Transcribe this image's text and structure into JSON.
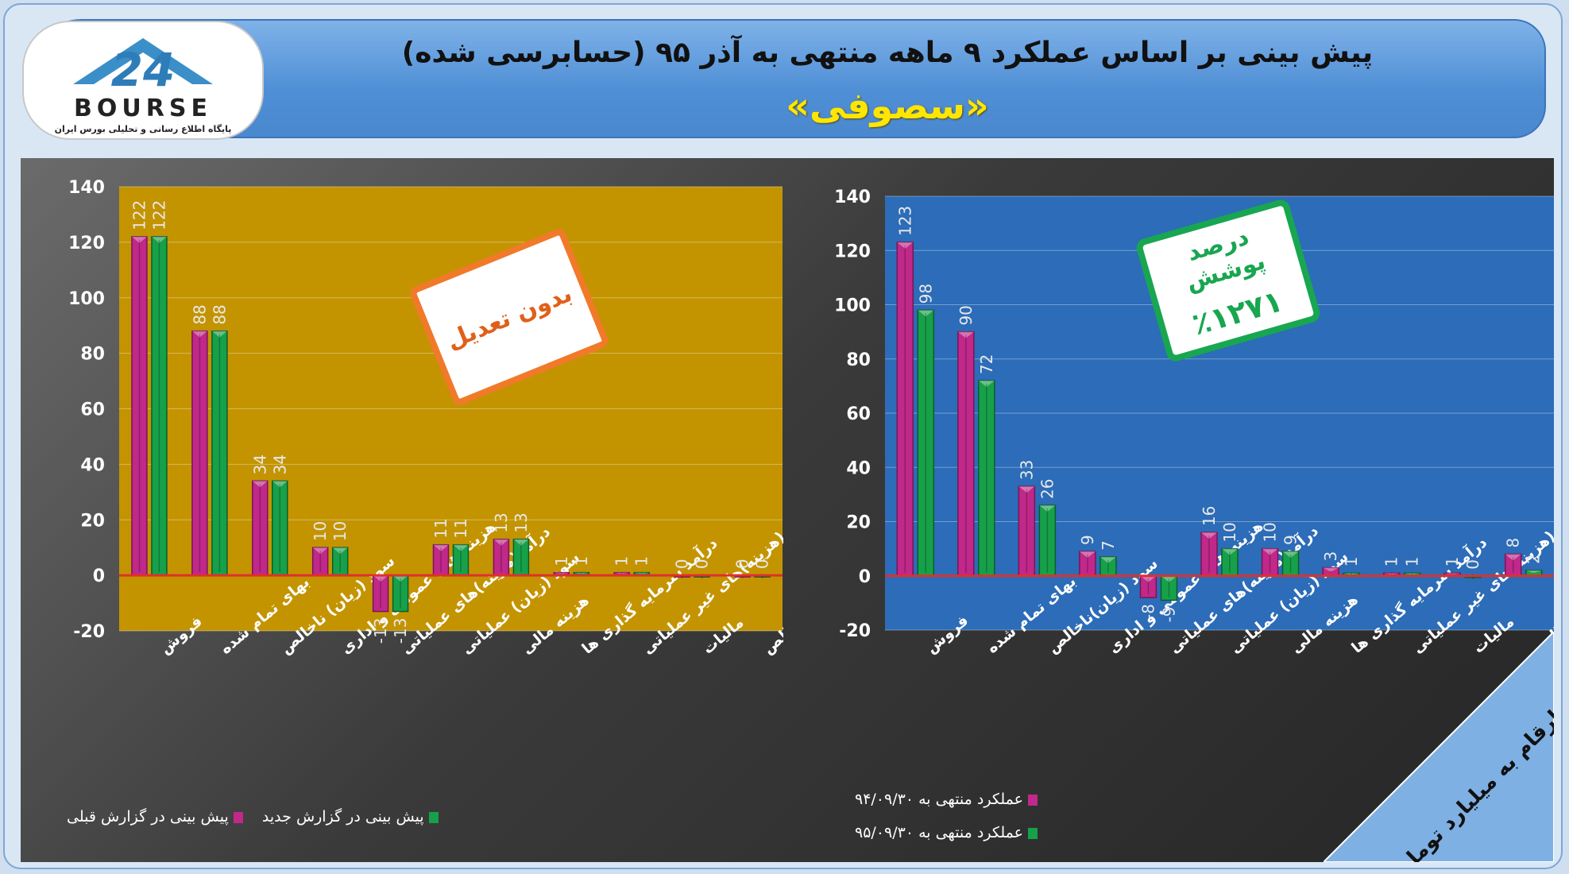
{
  "header": {
    "title": "پیش بینی بر اساس عملکرد ۹ ماهه منتهی به آذر ۹۵ (حسابرسی شده)",
    "company": "«سصوفی»"
  },
  "logo": {
    "brand": "BOURSE",
    "number": "24",
    "tagline": "پایگاه اطلاع رسانی و تحلیلی بورس ایران"
  },
  "colors": {
    "pink": "#c0288a",
    "green": "#17a04a",
    "left_plot": "#c39400",
    "right_plot": "#2c6cb8",
    "zero_line": "#e0302a"
  },
  "stamps": {
    "left": "بدون تعدیل",
    "right_line1": "درصد پوشش",
    "right_line2": "٪۱۲۷۱"
  },
  "units_note": "ارقام به میلیارد تومان",
  "chart_data": [
    {
      "type": "bar",
      "ylim": [
        -20,
        140
      ],
      "yticks": [
        -20,
        0,
        20,
        40,
        60,
        80,
        100,
        120,
        140
      ],
      "grid": true,
      "legend_position": "bottom",
      "categories": [
        "فروش",
        "بهای تمام شده",
        "سود (زیان) ناخالص",
        "هزینه های عمومی و اداری",
        "درآمد(هزینه)های عملیاتی",
        "سود (زیان) عملیاتی",
        "هزینه مالی",
        "درآمد سرمایه گذاری ها",
        "درآمد(هزینه)های غیر عملیاتی",
        "مالیات",
        "سود خالص"
      ],
      "series": [
        {
          "name": "پیش بینی در گزارش قبلی",
          "color": "#c0288a",
          "values": [
            122,
            88,
            34,
            10,
            -13,
            11,
            13,
            1,
            1,
            0,
            0
          ]
        },
        {
          "name": "پیش بینی در گزارش جدید",
          "color": "#17a04a",
          "values": [
            122,
            88,
            34,
            10,
            -13,
            11,
            13,
            1,
            1,
            0,
            0
          ]
        }
      ]
    },
    {
      "type": "bar",
      "ylim": [
        -20,
        140
      ],
      "yticks": [
        -20,
        0,
        20,
        40,
        60,
        80,
        100,
        120,
        140
      ],
      "grid": true,
      "legend_position": "bottom-left",
      "categories": [
        "فروش",
        "بهای تمام شده",
        "سود (زیان)ناخالص",
        "هزینه های عمومی و اداری",
        "درآمد(هزینه)های عملیاتی",
        "سود (زیان) عملیاتی",
        "هزینه مالی",
        "درآمد سرمایه گذاری ها",
        "درآمد(هزینه)های غیر عملیاتی",
        "مالیات",
        "سود خالص"
      ],
      "series": [
        {
          "name": "عملکرد منتهی به ۹۴/۰۹/۳۰",
          "color": "#c0288a",
          "values": [
            123,
            90,
            33,
            9,
            -8,
            16,
            10,
            3,
            1,
            1,
            8
          ]
        },
        {
          "name": "عملکرد منتهی به ۹۵/۰۹/۳۰",
          "color": "#17a04a",
          "values": [
            98,
            72,
            26,
            7,
            -9,
            10,
            9,
            1,
            1,
            0,
            2
          ]
        }
      ]
    }
  ]
}
